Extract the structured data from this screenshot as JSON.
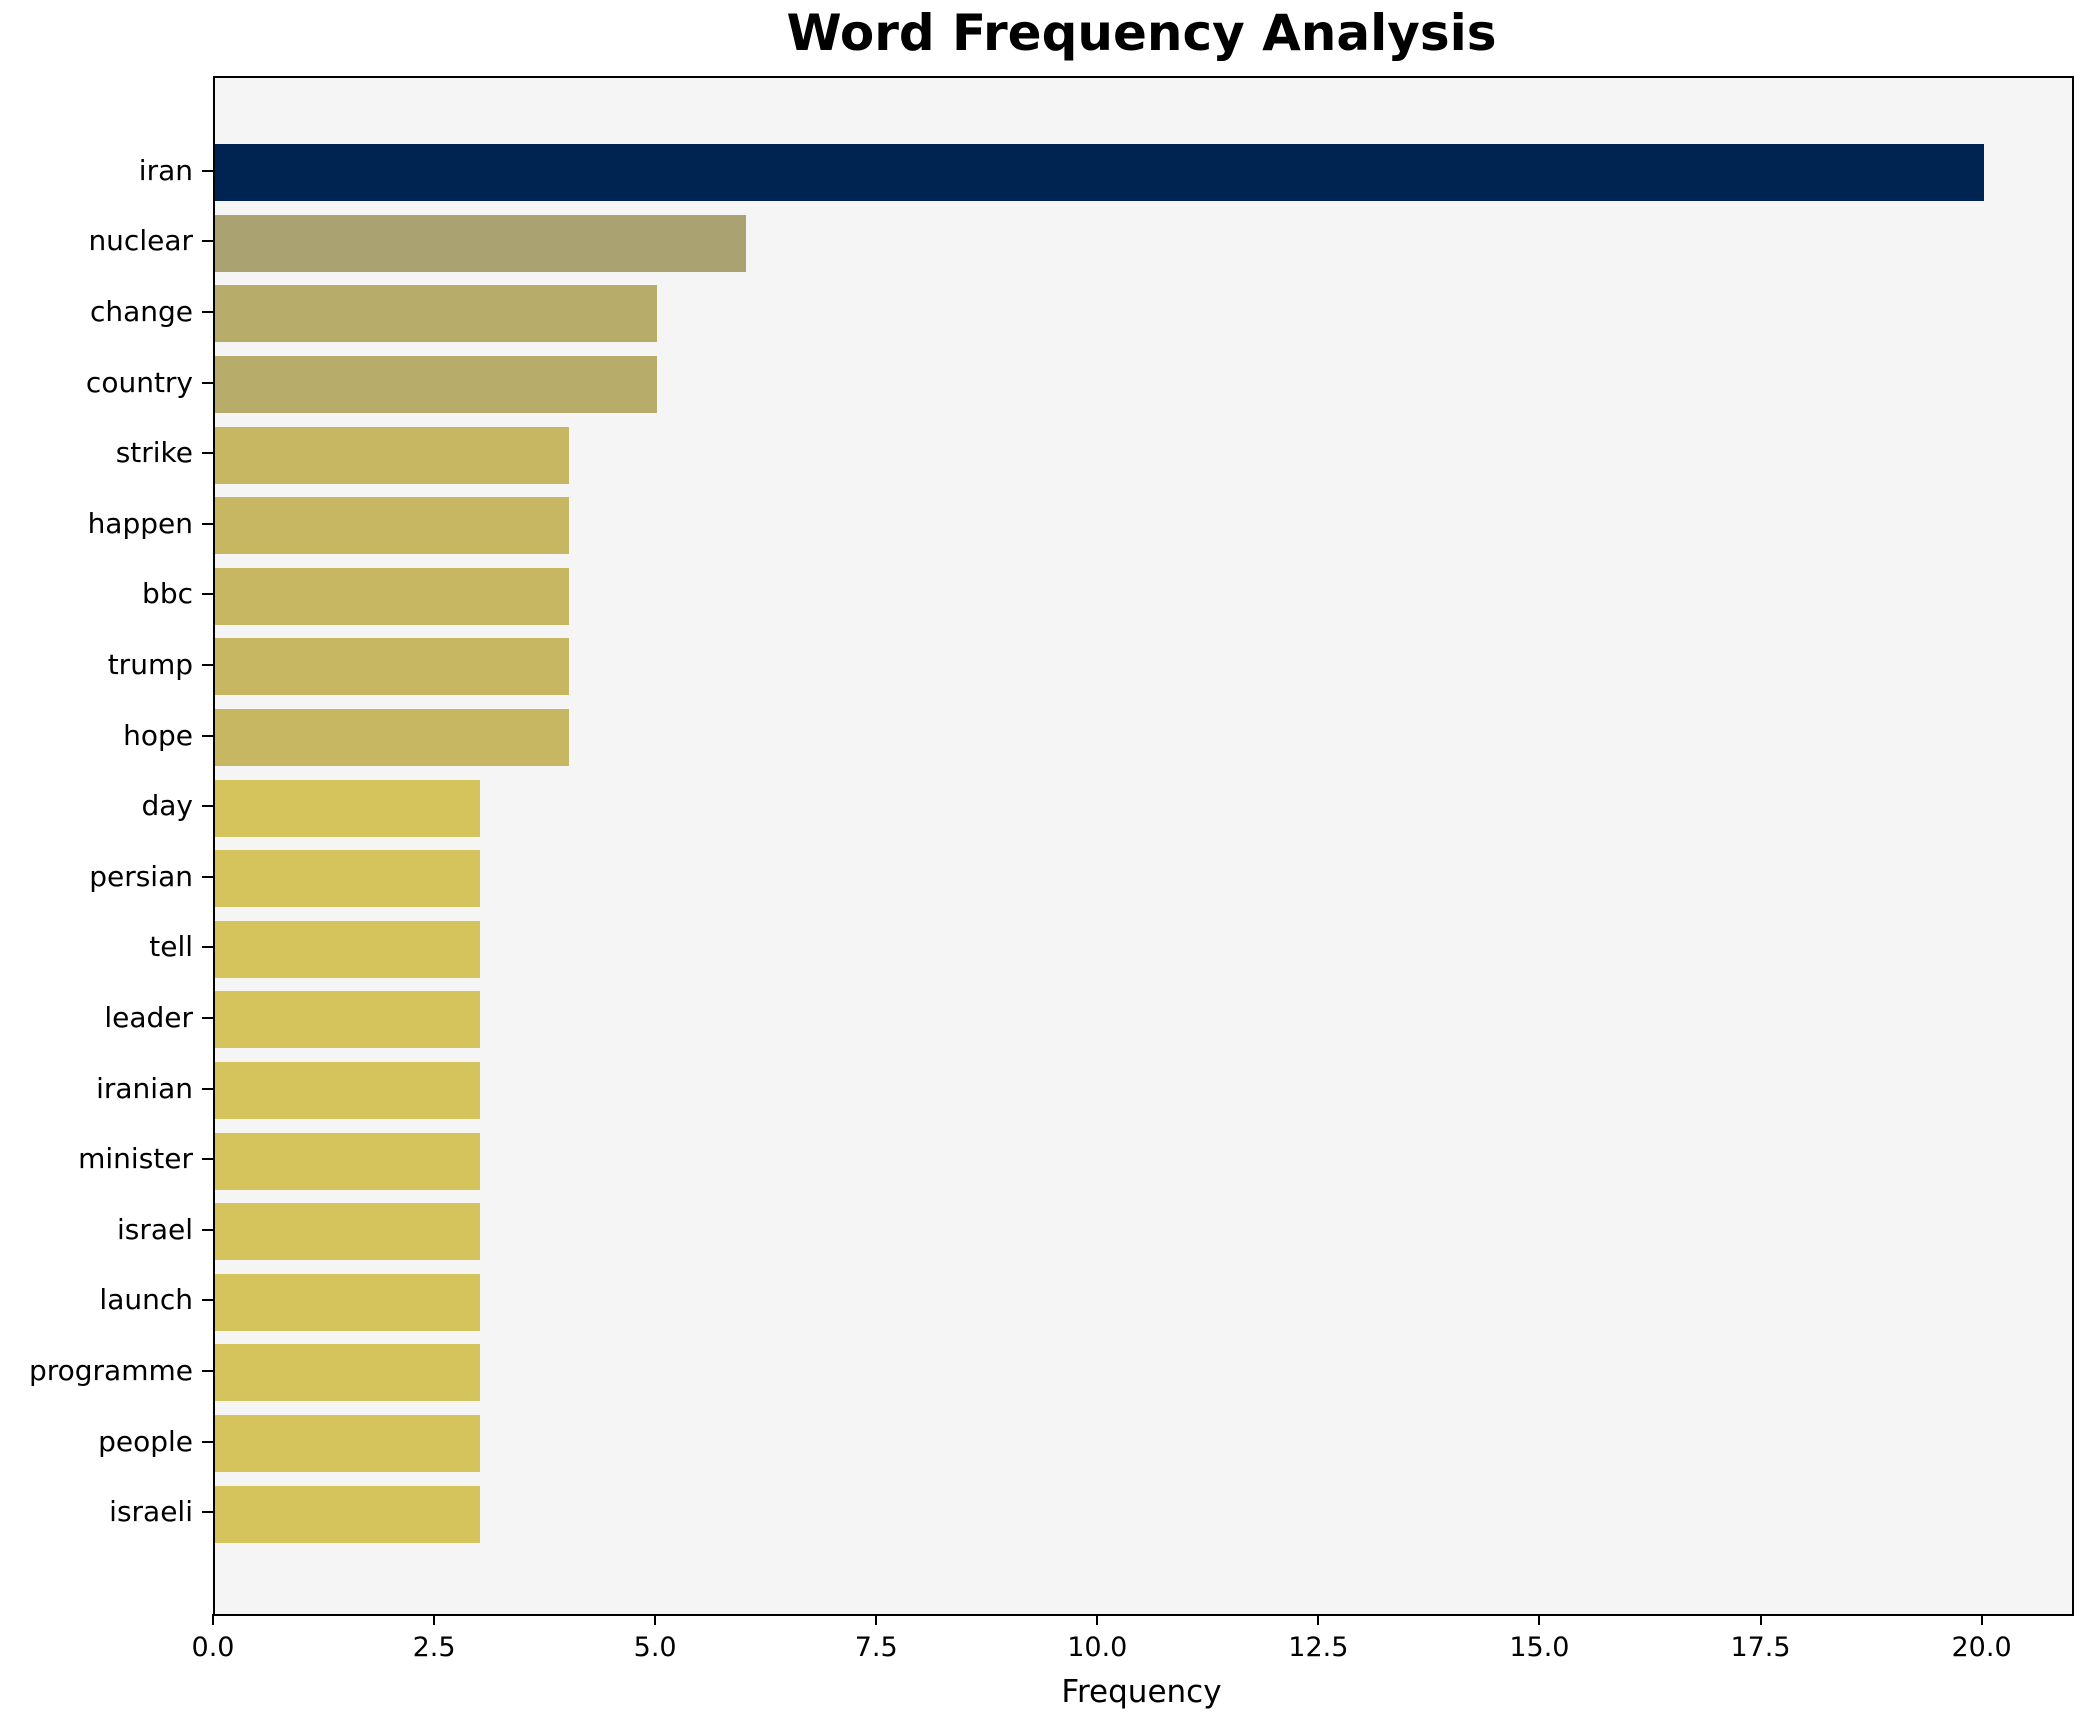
{
  "chart_data": {
    "type": "bar",
    "orientation": "horizontal",
    "title": "Word Frequency Analysis",
    "xlabel": "Frequency",
    "ylabel": "",
    "categories": [
      "iran",
      "nuclear",
      "change",
      "country",
      "strike",
      "happen",
      "bbc",
      "trump",
      "hope",
      "day",
      "persian",
      "tell",
      "leader",
      "iranian",
      "minister",
      "israel",
      "launch",
      "programme",
      "people",
      "israeli"
    ],
    "values": [
      20,
      6,
      5,
      5,
      4,
      4,
      4,
      4,
      4,
      3,
      3,
      3,
      3,
      3,
      3,
      3,
      3,
      3,
      3,
      3
    ],
    "bar_colors": [
      "#002451",
      "#aba272",
      "#b8ac6b",
      "#b8ac6b",
      "#c7b763",
      "#c7b763",
      "#c7b763",
      "#c7b763",
      "#c7b763",
      "#d5c45c",
      "#d5c45c",
      "#d5c45c",
      "#d5c45c",
      "#d5c45c",
      "#d5c45c",
      "#d5c45c",
      "#d5c45c",
      "#d5c45c",
      "#d5c45c",
      "#d5c45c"
    ],
    "xlim": [
      0,
      21
    ],
    "x_ticks": [
      "0.0",
      "2.5",
      "5.0",
      "7.5",
      "10.0",
      "12.5",
      "15.0",
      "17.5",
      "20.0"
    ],
    "x_tick_values": [
      0,
      2.5,
      5,
      7.5,
      10,
      12.5,
      15,
      17.5,
      20
    ],
    "grid": false,
    "legend": null,
    "plot_bg": "#f5f5f5",
    "fig_bg": "#ffffff",
    "highlight_color": "#002451"
  }
}
